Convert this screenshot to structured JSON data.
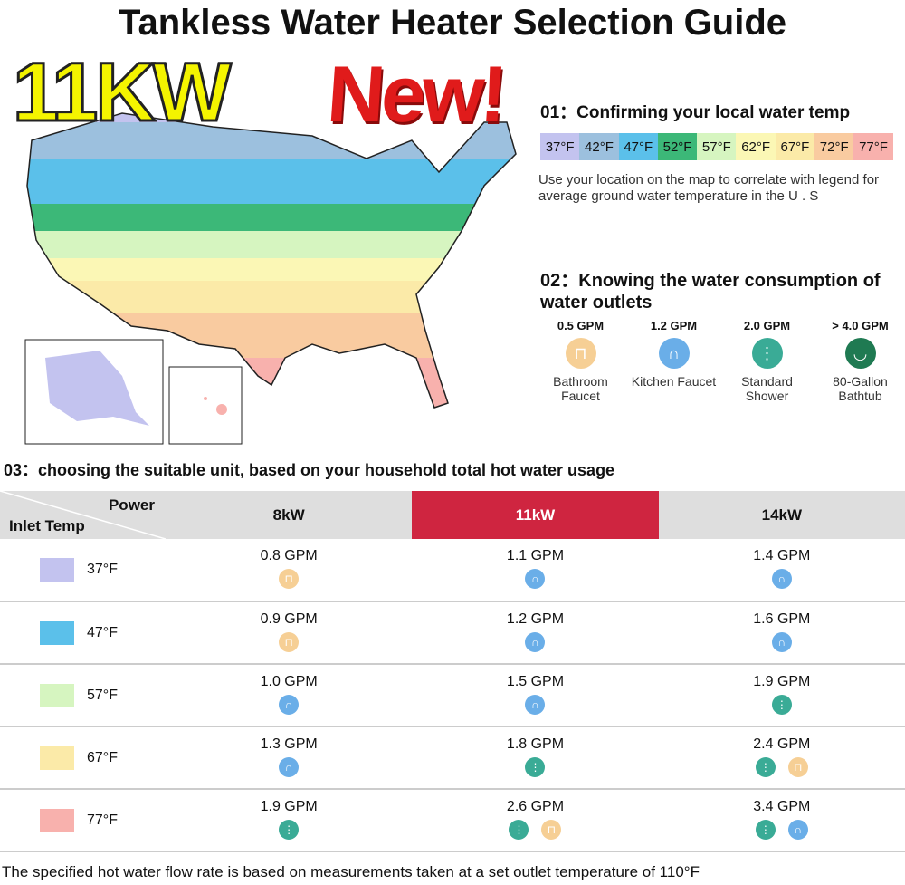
{
  "title": "Tankless Water Heater Selection Guide",
  "promo": {
    "power": "11KW",
    "badge": "New!"
  },
  "section1": {
    "heading": "01：Confirming your local water temp",
    "legend": [
      {
        "label": "37°F",
        "color": "#c3c3ef"
      },
      {
        "label": "42°F",
        "color": "#9cc0de"
      },
      {
        "label": "47°F",
        "color": "#5bc0ea"
      },
      {
        "label": "52°F",
        "color": "#3cb878"
      },
      {
        "label": "57°F",
        "color": "#d6f5c0"
      },
      {
        "label": "62°F",
        "color": "#fbf7b5"
      },
      {
        "label": "67°F",
        "color": "#fbeaa8"
      },
      {
        "label": "72°F",
        "color": "#f9cba0"
      },
      {
        "label": "77°F",
        "color": "#f8b1ad"
      }
    ],
    "description": "Use your location on the map to correlate with legend for average ground water temperature in the U . S"
  },
  "section2": {
    "heading": "02：Knowing the water consumption of water outlets",
    "outlets": [
      {
        "gpm": "0.5 GPM",
        "label": "Bathroom Faucet",
        "icon": "bathroom-faucet",
        "color": "#f6cf95"
      },
      {
        "gpm": "1.2 GPM",
        "label": "Kitchen Faucet",
        "icon": "kitchen-faucet",
        "color": "#6aaee8"
      },
      {
        "gpm": "2.0 GPM",
        "label": "Standard Shower",
        "icon": "shower",
        "color": "#3aab96"
      },
      {
        "gpm": "> 4.0 GPM",
        "label": "80-Gallon Bathtub",
        "icon": "bathtub",
        "color": "#1f7a52"
      }
    ]
  },
  "section3": {
    "heading": "03：choosing the suitable unit, based on your household total hot water usage",
    "corner_top": "Power",
    "corner_bottom": "Inlet Temp",
    "columns": [
      "8kW",
      "11kW",
      "14kW"
    ],
    "rows": [
      {
        "temp": "37°F",
        "color": "#c3c3ef",
        "cells": [
          {
            "gpm": "0.8 GPM",
            "icons": [
              "bathroom-faucet"
            ]
          },
          {
            "gpm": "1.1 GPM",
            "icons": [
              "kitchen-faucet"
            ]
          },
          {
            "gpm": "1.4 GPM",
            "icons": [
              "kitchen-faucet"
            ]
          }
        ]
      },
      {
        "temp": "47°F",
        "color": "#5bc0ea",
        "cells": [
          {
            "gpm": "0.9 GPM",
            "icons": [
              "bathroom-faucet"
            ]
          },
          {
            "gpm": "1.2 GPM",
            "icons": [
              "kitchen-faucet"
            ]
          },
          {
            "gpm": "1.6 GPM",
            "icons": [
              "kitchen-faucet"
            ]
          }
        ]
      },
      {
        "temp": "57°F",
        "color": "#d6f5c0",
        "cells": [
          {
            "gpm": "1.0 GPM",
            "icons": [
              "kitchen-faucet"
            ]
          },
          {
            "gpm": "1.5 GPM",
            "icons": [
              "kitchen-faucet"
            ]
          },
          {
            "gpm": "1.9 GPM",
            "icons": [
              "shower"
            ]
          }
        ]
      },
      {
        "temp": "67°F",
        "color": "#fbeaa8",
        "cells": [
          {
            "gpm": "1.3 GPM",
            "icons": [
              "kitchen-faucet"
            ]
          },
          {
            "gpm": "1.8 GPM",
            "icons": [
              "shower"
            ]
          },
          {
            "gpm": "2.4 GPM",
            "icons": [
              "shower",
              "bathroom-faucet"
            ]
          }
        ]
      },
      {
        "temp": "77°F",
        "color": "#f8b1ad",
        "cells": [
          {
            "gpm": "1.9 GPM",
            "icons": [
              "shower"
            ]
          },
          {
            "gpm": "2.6 GPM",
            "icons": [
              "shower",
              "bathroom-faucet"
            ]
          },
          {
            "gpm": "3.4 GPM",
            "icons": [
              "shower",
              "kitchen-faucet"
            ]
          }
        ]
      }
    ]
  },
  "footnote": "The specified hot water flow rate is based on measurements taken at a set outlet temperature of 110°F"
}
